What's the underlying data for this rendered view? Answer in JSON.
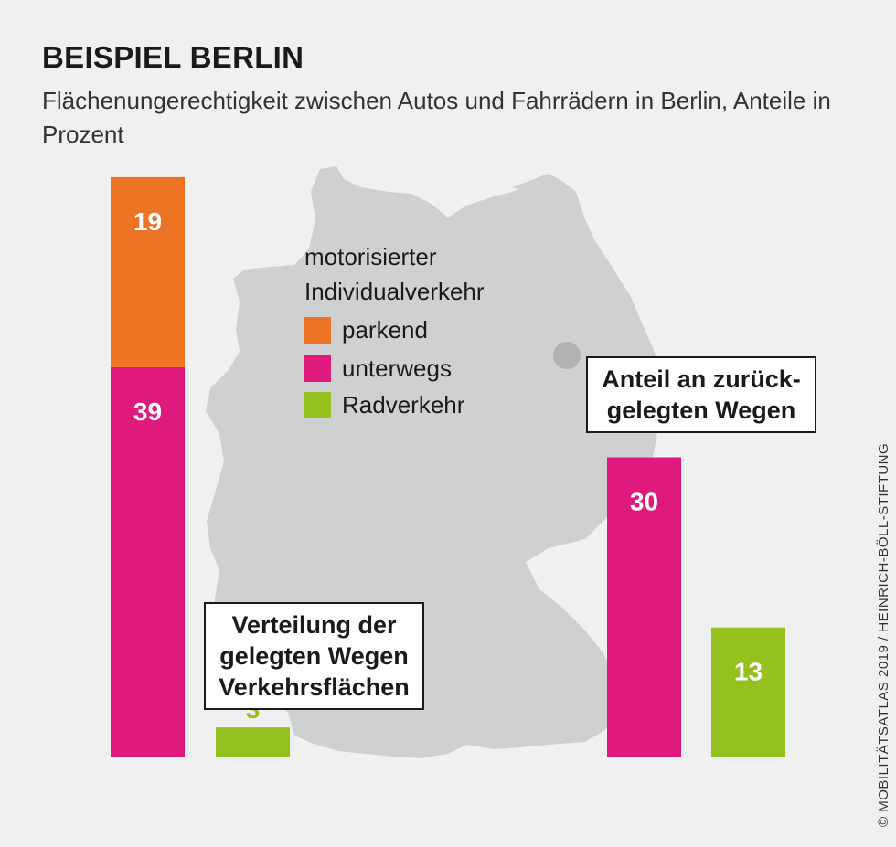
{
  "title": "BEISPIEL BERLIN",
  "subtitle": "Flächenungerechtigkeit zwischen Autos und Fahrrädern in Berlin, Anteile in Prozent",
  "legend": {
    "heading_line1": "motorisierter",
    "heading_line2": "Individualverkehr",
    "items": [
      {
        "label": "parkend",
        "color": "#ec7424"
      },
      {
        "label": "unterwegs",
        "color": "#e0197d"
      },
      {
        "label": "Radverkehr",
        "color": "#95c11f"
      }
    ]
  },
  "annotations": {
    "left_box_line1": "Verteilung der",
    "left_box_line2": "Verkehrsflächen",
    "right_box_line1": "Anteil an zurück-",
    "right_box_line2": "gelegten Wegen"
  },
  "credit": "© MOBILITÄTSATLAS 2019 / HEINRICH-BÖLL-STIFTUNG",
  "colors": {
    "background": "#f0f0f0",
    "map": "#cfd0d2",
    "berlin_marker": "#b1b2b4",
    "label_light": "#ffffff",
    "label_green": "#95c11f"
  },
  "chart_data": [
    {
      "type": "bar",
      "group": "Verteilung der Verkehrsflächen",
      "stacked": true,
      "ylim": [
        0,
        58
      ],
      "bars": [
        {
          "id": "flaeche-motor",
          "segments": [
            {
              "series": "unterwegs",
              "value": 39,
              "color": "#e0197d",
              "label": "39"
            },
            {
              "series": "parkend",
              "value": 19,
              "color": "#ec7424",
              "label": "19"
            }
          ]
        },
        {
          "id": "flaeche-rad",
          "segments": [
            {
              "series": "Radverkehr",
              "value": 3,
              "color": "#95c11f",
              "label": "3"
            }
          ]
        }
      ]
    },
    {
      "type": "bar",
      "group": "Anteil an zurückgelegten Wegen",
      "stacked": false,
      "ylim": [
        0,
        58
      ],
      "bars": [
        {
          "id": "wege-motor",
          "segments": [
            {
              "series": "unterwegs",
              "value": 30,
              "color": "#e0197d",
              "label": "30"
            }
          ]
        },
        {
          "id": "wege-rad",
          "segments": [
            {
              "series": "Radverkehr",
              "value": 13,
              "color": "#95c11f",
              "label": "13"
            }
          ]
        }
      ]
    }
  ]
}
